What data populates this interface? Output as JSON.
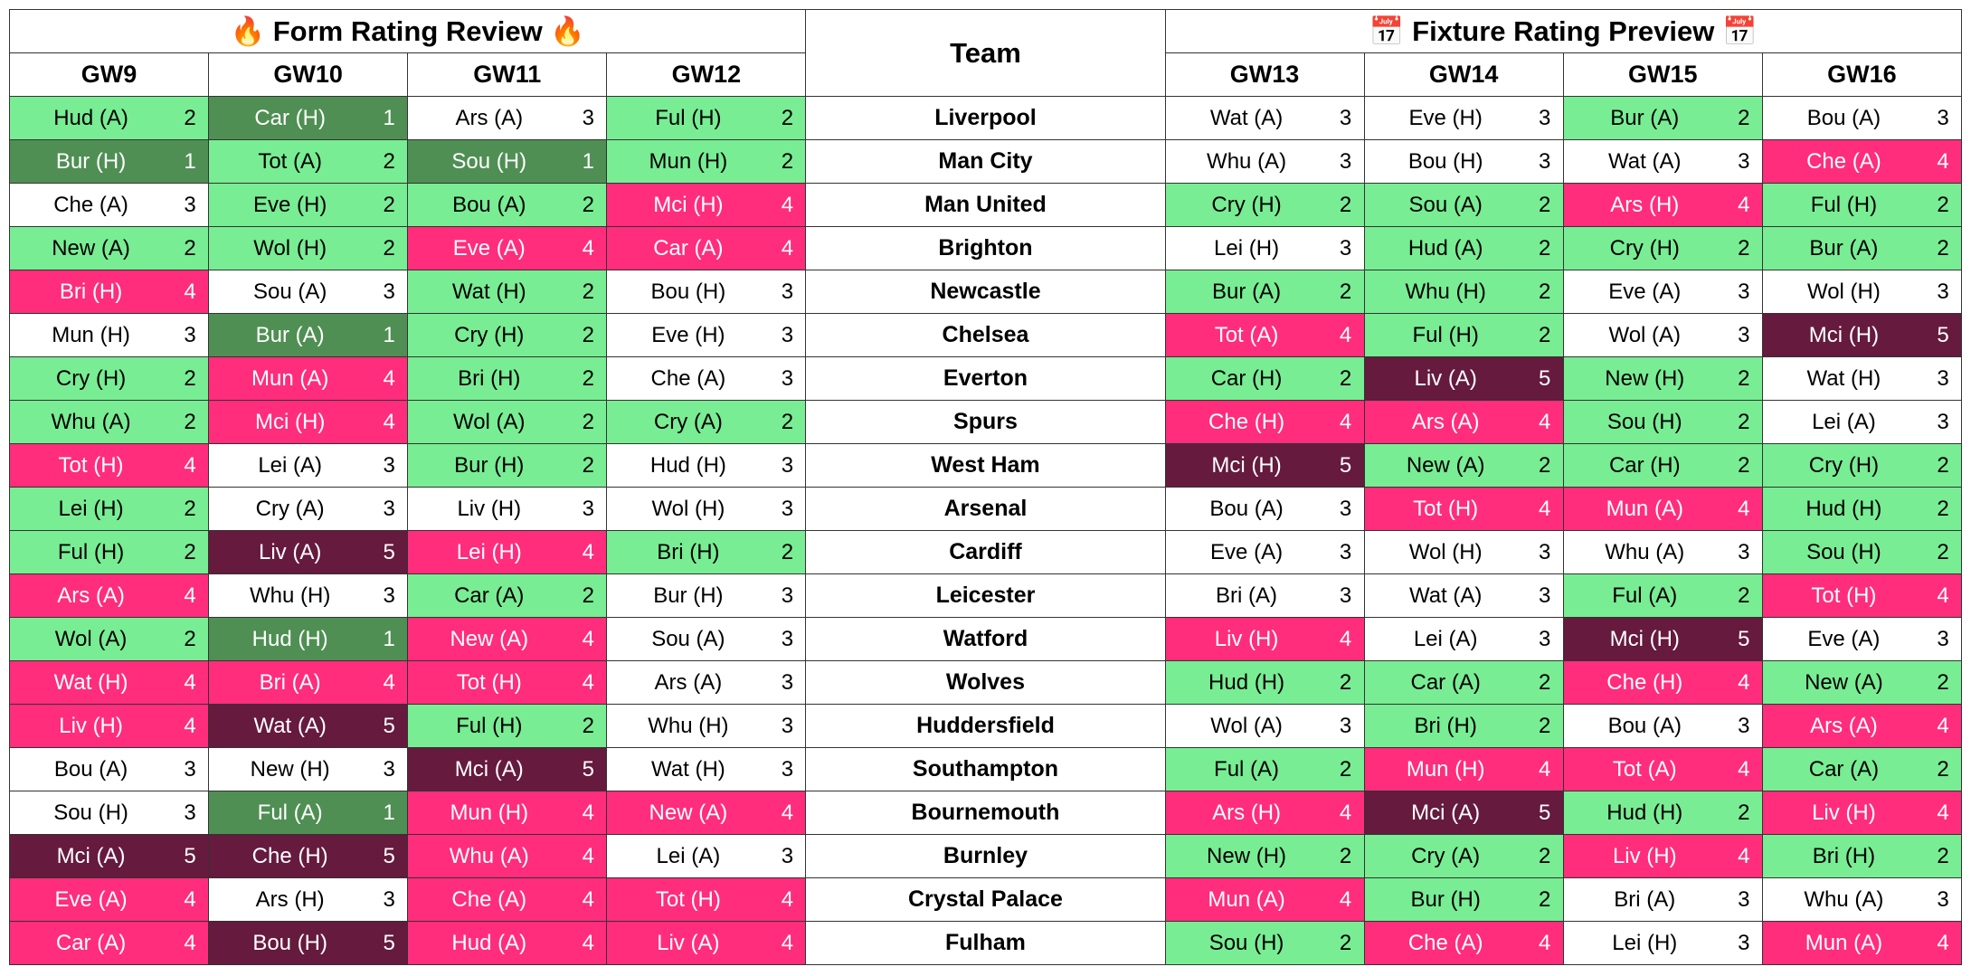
{
  "headers": {
    "form_title": "Form Rating Review",
    "fixture_title": "Fixture Rating Preview",
    "team_label": "Team",
    "fire_icon": "🔥",
    "cal_icon": "📅",
    "form_gws": [
      "GW9",
      "GW10",
      "GW11",
      "GW12"
    ],
    "fixture_gws": [
      "GW13",
      "GW14",
      "GW15",
      "GW16"
    ]
  },
  "colors": {
    "1": {
      "bg": "#4f8f53",
      "fg": "#ffffff"
    },
    "2": {
      "bg": "#78ed93",
      "fg": "#000000"
    },
    "3": {
      "bg": "#ffffff",
      "fg": "#000000"
    },
    "4": {
      "bg": "#ff2d7b",
      "fg": "#ffffff"
    },
    "5": {
      "bg": "#651a3e",
      "fg": "#ffffff"
    }
  },
  "rows": [
    {
      "team": "Liverpool",
      "form": [
        [
          "Hud (A)",
          2
        ],
        [
          "Car (H)",
          1
        ],
        [
          "Ars (A)",
          3
        ],
        [
          "Ful (H)",
          2
        ]
      ],
      "fix": [
        [
          "Wat (A)",
          3
        ],
        [
          "Eve (H)",
          3
        ],
        [
          "Bur (A)",
          2
        ],
        [
          "Bou (A)",
          3
        ]
      ]
    },
    {
      "team": "Man City",
      "form": [
        [
          "Bur (H)",
          1
        ],
        [
          "Tot (A)",
          2
        ],
        [
          "Sou (H)",
          1
        ],
        [
          "Mun (H)",
          2
        ]
      ],
      "fix": [
        [
          "Whu (A)",
          3
        ],
        [
          "Bou (H)",
          3
        ],
        [
          "Wat (A)",
          3
        ],
        [
          "Che (A)",
          4
        ]
      ]
    },
    {
      "team": "Man United",
      "form": [
        [
          "Che (A)",
          3
        ],
        [
          "Eve (H)",
          2
        ],
        [
          "Bou (A)",
          2
        ],
        [
          "Mci (H)",
          4
        ]
      ],
      "fix": [
        [
          "Cry (H)",
          2
        ],
        [
          "Sou (A)",
          2
        ],
        [
          "Ars (H)",
          4
        ],
        [
          "Ful (H)",
          2
        ]
      ]
    },
    {
      "team": "Brighton",
      "form": [
        [
          "New (A)",
          2
        ],
        [
          "Wol (H)",
          2
        ],
        [
          "Eve (A)",
          4
        ],
        [
          "Car (A)",
          4
        ]
      ],
      "fix": [
        [
          "Lei (H)",
          3
        ],
        [
          "Hud (A)",
          2
        ],
        [
          "Cry (H)",
          2
        ],
        [
          "Bur (A)",
          2
        ]
      ]
    },
    {
      "team": "Newcastle",
      "form": [
        [
          "Bri (H)",
          4
        ],
        [
          "Sou (A)",
          3
        ],
        [
          "Wat (H)",
          2
        ],
        [
          "Bou (H)",
          3
        ]
      ],
      "fix": [
        [
          "Bur (A)",
          2
        ],
        [
          "Whu (H)",
          2
        ],
        [
          "Eve (A)",
          3
        ],
        [
          "Wol (H)",
          3
        ]
      ]
    },
    {
      "team": "Chelsea",
      "form": [
        [
          "Mun (H)",
          3
        ],
        [
          "Bur (A)",
          1
        ],
        [
          "Cry (H)",
          2
        ],
        [
          "Eve (H)",
          3
        ]
      ],
      "fix": [
        [
          "Tot (A)",
          4
        ],
        [
          "Ful (H)",
          2
        ],
        [
          "Wol (A)",
          3
        ],
        [
          "Mci (H)",
          5
        ]
      ]
    },
    {
      "team": "Everton",
      "form": [
        [
          "Cry (H)",
          2
        ],
        [
          "Mun (A)",
          4
        ],
        [
          "Bri (H)",
          2
        ],
        [
          "Che (A)",
          3
        ]
      ],
      "fix": [
        [
          "Car (H)",
          2
        ],
        [
          "Liv (A)",
          5
        ],
        [
          "New (H)",
          2
        ],
        [
          "Wat (H)",
          3
        ]
      ]
    },
    {
      "team": "Spurs",
      "form": [
        [
          "Whu (A)",
          2
        ],
        [
          "Mci (H)",
          4
        ],
        [
          "Wol (A)",
          2
        ],
        [
          "Cry (A)",
          2
        ]
      ],
      "fix": [
        [
          "Che (H)",
          4
        ],
        [
          "Ars (A)",
          4
        ],
        [
          "Sou (H)",
          2
        ],
        [
          "Lei (A)",
          3
        ]
      ]
    },
    {
      "team": "West Ham",
      "form": [
        [
          "Tot (H)",
          4
        ],
        [
          "Lei (A)",
          3
        ],
        [
          "Bur (H)",
          2
        ],
        [
          "Hud (H)",
          3
        ]
      ],
      "fix": [
        [
          "Mci (H)",
          5
        ],
        [
          "New (A)",
          2
        ],
        [
          "Car (H)",
          2
        ],
        [
          "Cry (H)",
          2
        ]
      ]
    },
    {
      "team": "Arsenal",
      "form": [
        [
          "Lei (H)",
          2
        ],
        [
          "Cry (A)",
          3
        ],
        [
          "Liv (H)",
          3
        ],
        [
          "Wol (H)",
          3
        ]
      ],
      "fix": [
        [
          "Bou (A)",
          3
        ],
        [
          "Tot (H)",
          4
        ],
        [
          "Mun (A)",
          4
        ],
        [
          "Hud (H)",
          2
        ]
      ]
    },
    {
      "team": "Cardiff",
      "form": [
        [
          "Ful (H)",
          2
        ],
        [
          "Liv (A)",
          5
        ],
        [
          "Lei (H)",
          4
        ],
        [
          "Bri (H)",
          2
        ]
      ],
      "fix": [
        [
          "Eve (A)",
          3
        ],
        [
          "Wol (H)",
          3
        ],
        [
          "Whu (A)",
          3
        ],
        [
          "Sou (H)",
          2
        ]
      ]
    },
    {
      "team": "Leicester",
      "form": [
        [
          "Ars (A)",
          4
        ],
        [
          "Whu (H)",
          3
        ],
        [
          "Car (A)",
          2
        ],
        [
          "Bur (H)",
          3
        ]
      ],
      "fix": [
        [
          "Bri (A)",
          3
        ],
        [
          "Wat (A)",
          3
        ],
        [
          "Ful (A)",
          2
        ],
        [
          "Tot (H)",
          4
        ]
      ]
    },
    {
      "team": "Watford",
      "form": [
        [
          "Wol (A)",
          2
        ],
        [
          "Hud (H)",
          1
        ],
        [
          "New (A)",
          4
        ],
        [
          "Sou (A)",
          3
        ]
      ],
      "fix": [
        [
          "Liv (H)",
          4
        ],
        [
          "Lei (A)",
          3
        ],
        [
          "Mci (H)",
          5
        ],
        [
          "Eve (A)",
          3
        ]
      ]
    },
    {
      "team": "Wolves",
      "form": [
        [
          "Wat (H)",
          4
        ],
        [
          "Bri (A)",
          4
        ],
        [
          "Tot (H)",
          4
        ],
        [
          "Ars (A)",
          3
        ]
      ],
      "fix": [
        [
          "Hud (H)",
          2
        ],
        [
          "Car (A)",
          2
        ],
        [
          "Che (H)",
          4
        ],
        [
          "New (A)",
          2
        ]
      ]
    },
    {
      "team": "Huddersfield",
      "form": [
        [
          "Liv (H)",
          4
        ],
        [
          "Wat (A)",
          5
        ],
        [
          "Ful (H)",
          2
        ],
        [
          "Whu (H)",
          3
        ]
      ],
      "fix": [
        [
          "Wol (A)",
          3
        ],
        [
          "Bri (H)",
          2
        ],
        [
          "Bou (A)",
          3
        ],
        [
          "Ars (A)",
          4
        ]
      ]
    },
    {
      "team": "Southampton",
      "form": [
        [
          "Bou (A)",
          3
        ],
        [
          "New (H)",
          3
        ],
        [
          "Mci (A)",
          5
        ],
        [
          "Wat (H)",
          3
        ]
      ],
      "fix": [
        [
          "Ful (A)",
          2
        ],
        [
          "Mun (H)",
          4
        ],
        [
          "Tot (A)",
          4
        ],
        [
          "Car (A)",
          2
        ]
      ]
    },
    {
      "team": "Bournemouth",
      "form": [
        [
          "Sou (H)",
          3
        ],
        [
          "Ful (A)",
          1
        ],
        [
          "Mun (H)",
          4
        ],
        [
          "New (A)",
          4
        ]
      ],
      "fix": [
        [
          "Ars (H)",
          4
        ],
        [
          "Mci (A)",
          5
        ],
        [
          "Hud (H)",
          2
        ],
        [
          "Liv (H)",
          4
        ]
      ]
    },
    {
      "team": "Burnley",
      "form": [
        [
          "Mci (A)",
          5
        ],
        [
          "Che (H)",
          5
        ],
        [
          "Whu (A)",
          4
        ],
        [
          "Lei (A)",
          3
        ]
      ],
      "fix": [
        [
          "New (H)",
          2
        ],
        [
          "Cry (A)",
          2
        ],
        [
          "Liv (H)",
          4
        ],
        [
          "Bri (H)",
          2
        ]
      ]
    },
    {
      "team": "Crystal Palace",
      "form": [
        [
          "Eve (A)",
          4
        ],
        [
          "Ars (H)",
          3
        ],
        [
          "Che (A)",
          4
        ],
        [
          "Tot (H)",
          4
        ]
      ],
      "fix": [
        [
          "Mun (A)",
          4
        ],
        [
          "Bur (H)",
          2
        ],
        [
          "Bri (A)",
          3
        ],
        [
          "Whu (A)",
          3
        ]
      ]
    },
    {
      "team": "Fulham",
      "form": [
        [
          "Car (A)",
          4
        ],
        [
          "Bou (H)",
          5
        ],
        [
          "Hud (A)",
          4
        ],
        [
          "Liv (A)",
          4
        ]
      ],
      "fix": [
        [
          "Sou (H)",
          2
        ],
        [
          "Che (A)",
          4
        ],
        [
          "Lei (H)",
          3
        ],
        [
          "Mun (A)",
          4
        ]
      ]
    }
  ]
}
